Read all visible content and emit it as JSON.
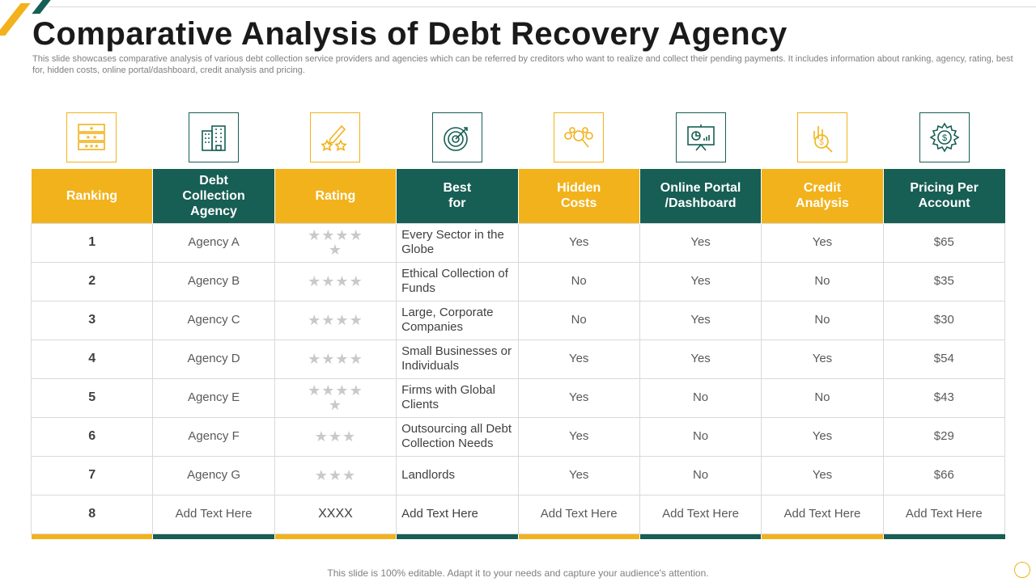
{
  "slide": {
    "title": "Comparative Analysis of Debt Recovery Agency",
    "subtitle": "This slide showcases comparative analysis of various debt collection service providers and agencies which can be referred by creditors who want to realize and collect their pending payments. It includes information about ranking, agency, rating, best for,  hidden costs, online portal/dashboard, credit analysis and pricing.",
    "footer": "This slide is 100% editable. Adapt it to your needs and capture your audience's attention."
  },
  "colors": {
    "accent_yellow": "#f2b21b",
    "accent_green": "#175e54",
    "border": "#d9d9d9",
    "star": "#c9c9c9"
  },
  "icons": [
    "ranking-stars-icon",
    "office-building-icon",
    "pencil-stars-icon",
    "target-icon",
    "hidden-costs-icon",
    "dashboard-screen-icon",
    "credit-analysis-icon",
    "pricing-gear-dollar-icon"
  ],
  "table": {
    "headers": [
      "Ranking",
      "Debt Collection Agency",
      "Rating",
      "Best for",
      "Hidden Costs",
      "Online Portal /Dashboard",
      "Credit Analysis",
      "Pricing Per Account"
    ],
    "rows": [
      {
        "rank": "1",
        "agency": "Agency A",
        "rating": "★★★★ ★",
        "best_for": "Every Sector in the Globe",
        "hidden_costs": "Yes",
        "portal": "Yes",
        "credit": "Yes",
        "pricing": "$65"
      },
      {
        "rank": "2",
        "agency": "Agency B",
        "rating": "★★★★",
        "best_for": "Ethical Collection of Funds",
        "hidden_costs": "No",
        "portal": "Yes",
        "credit": "No",
        "pricing": "$35"
      },
      {
        "rank": "3",
        "agency": "Agency C",
        "rating": "★★★★",
        "best_for": "Large, Corporate Companies",
        "hidden_costs": "No",
        "portal": "Yes",
        "credit": "No",
        "pricing": "$30"
      },
      {
        "rank": "4",
        "agency": "Agency D",
        "rating": "★★★★",
        "best_for": "Small Businesses or Individuals",
        "hidden_costs": "Yes",
        "portal": "Yes",
        "credit": "Yes",
        "pricing": "$54"
      },
      {
        "rank": "5",
        "agency": "Agency E",
        "rating": "★★★★ ★",
        "best_for": "Firms with Global Clients",
        "hidden_costs": "Yes",
        "portal": "No",
        "credit": "No",
        "pricing": "$43"
      },
      {
        "rank": "6",
        "agency": "Agency F",
        "rating": "★★★",
        "best_for": "Outsourcing all Debt Collection Needs",
        "hidden_costs": "Yes",
        "portal": "No",
        "credit": "Yes",
        "pricing": "$29"
      },
      {
        "rank": "7",
        "agency": "Agency G",
        "rating": "★★★",
        "best_for": "Landlords",
        "hidden_costs": "Yes",
        "portal": "No",
        "credit": "Yes",
        "pricing": "$66"
      },
      {
        "rank": "8",
        "agency": "Add Text Here",
        "rating": "XXXX",
        "best_for": "Add Text Here",
        "hidden_costs": "Add Text Here",
        "portal": "Add Text Here",
        "credit": "Add Text Here",
        "pricing": "Add Text Here"
      }
    ]
  }
}
